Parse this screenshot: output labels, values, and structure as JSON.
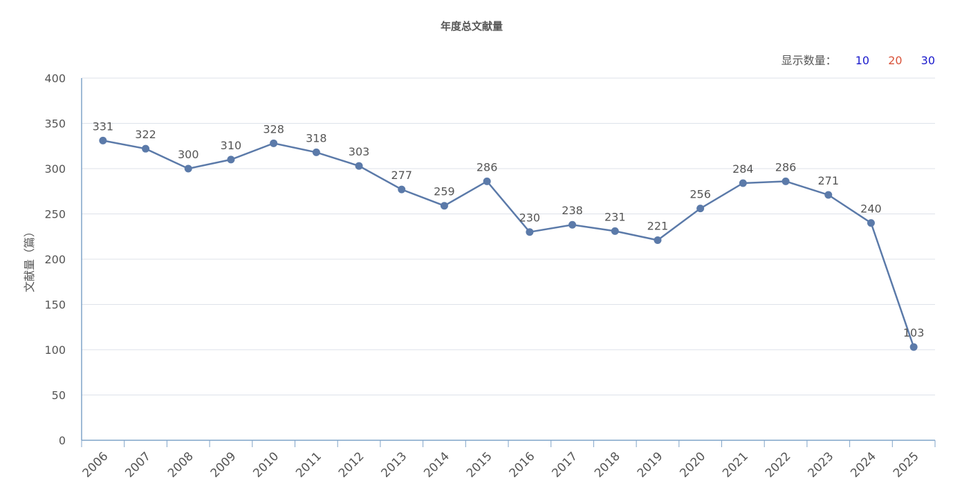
{
  "title": "年度总文献量",
  "count_selector": {
    "label": "显示数量：",
    "options": [
      {
        "label": "10",
        "color": "#1a1acc"
      },
      {
        "label": "20",
        "color": "#d9533a"
      },
      {
        "label": "30",
        "color": "#1a1acc"
      }
    ]
  },
  "colors": {
    "line": "#5b7aa9",
    "axis": "#7fa3c8",
    "grid": "#dde2ea",
    "text": "#555555"
  },
  "chart_data": {
    "type": "line",
    "title": "年度总文献量",
    "xlabel": "",
    "ylabel": "文献量（篇）",
    "ylim": [
      0,
      400
    ],
    "yticks": [
      0,
      50,
      100,
      150,
      200,
      250,
      300,
      350,
      400
    ],
    "grid": true,
    "categories": [
      "2006",
      "2007",
      "2008",
      "2009",
      "2010",
      "2011",
      "2012",
      "2013",
      "2014",
      "2015",
      "2016",
      "2017",
      "2018",
      "2019",
      "2020",
      "2021",
      "2022",
      "2023",
      "2024",
      "2025"
    ],
    "series": [
      {
        "values": [
          331,
          322,
          300,
          310,
          328,
          318,
          303,
          277,
          259,
          286,
          230,
          238,
          231,
          221,
          256,
          284,
          286,
          271,
          240,
          103
        ]
      }
    ]
  }
}
